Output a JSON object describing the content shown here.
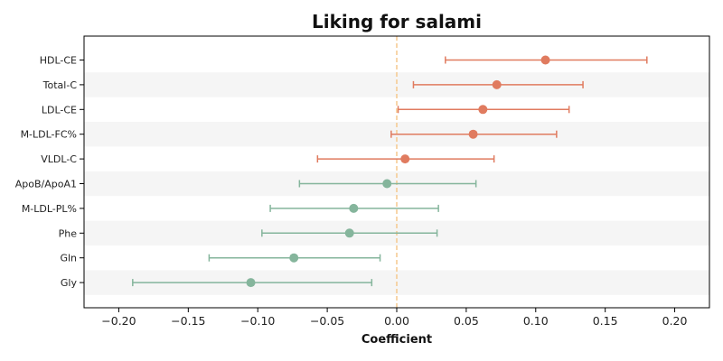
{
  "chart_data": {
    "type": "forest",
    "title": "Liking for salami",
    "xlabel": "Coefficient",
    "xlim": [
      -0.225,
      0.225
    ],
    "xticks": [
      -0.2,
      -0.15,
      -0.1,
      -0.05,
      0.0,
      0.05,
      0.1,
      0.15,
      0.2
    ],
    "xtick_labels": [
      "−0.20",
      "−0.15",
      "−0.10",
      "−0.05",
      "0.00",
      "0.05",
      "0.10",
      "0.15",
      "0.20"
    ],
    "reference_line": 0,
    "grid": false,
    "colors": {
      "positive": "#e07b5f",
      "negative": "#85b59c",
      "reference": "#f5c98e",
      "band": "#f5f5f5"
    },
    "categories": [
      "HDL-CE",
      "Total-C",
      "LDL-CE",
      "M-LDL-FC%",
      "VLDL-C",
      "ApoB/ApoA1",
      "M-LDL-PL%",
      "Phe",
      "Gln",
      "Gly"
    ],
    "estimates": [
      0.107,
      0.072,
      0.062,
      0.055,
      0.006,
      -0.007,
      -0.031,
      -0.034,
      -0.074,
      -0.105
    ],
    "ci_lower": [
      0.035,
      0.012,
      0.001,
      -0.004,
      -0.057,
      -0.07,
      -0.091,
      -0.097,
      -0.135,
      -0.19
    ],
    "ci_upper": [
      0.18,
      0.134,
      0.124,
      0.115,
      0.07,
      0.057,
      0.03,
      0.029,
      -0.012,
      -0.018
    ]
  }
}
